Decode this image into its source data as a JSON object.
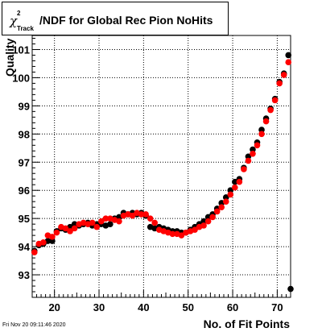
{
  "header": {
    "chi_symbol": "χ",
    "superscript": "2",
    "subscript": "Track",
    "title_rest": "/NDF for Global Rec Pion NoHits"
  },
  "footer": {
    "timestamp": "Fri Nov 20 09:11:46 2020"
  },
  "chart_data": {
    "type": "scatter",
    "title": "χ²_Track/NDF for Global Rec Pion NoHits",
    "xlabel": "No. of Fit Points",
    "ylabel": "Quality",
    "xlim": [
      15,
      73
    ],
    "ylim": [
      92.2,
      101.5
    ],
    "xticks": [
      20,
      30,
      40,
      50,
      60,
      70
    ],
    "yticks": [
      93,
      94,
      95,
      96,
      97,
      98,
      99,
      100,
      101
    ],
    "grid": true,
    "colors": {
      "black_series": "#000000",
      "red_series": "#ff0000"
    },
    "series": [
      {
        "color": "#000000",
        "points": [
          [
            15.5,
            93.85
          ],
          [
            16.5,
            94.05
          ],
          [
            17.5,
            94.1
          ],
          [
            18.5,
            94.2
          ],
          [
            19.5,
            94.2
          ],
          [
            20.5,
            94.55
          ],
          [
            21.5,
            94.65
          ],
          [
            22.5,
            94.6
          ],
          [
            23.5,
            94.7
          ],
          [
            24.5,
            94.8
          ],
          [
            25.5,
            94.75
          ],
          [
            26.5,
            94.8
          ],
          [
            27.5,
            94.85
          ],
          [
            28.5,
            94.75
          ],
          [
            29.5,
            94.8
          ],
          [
            30.5,
            94.8
          ],
          [
            31.5,
            94.75
          ],
          [
            32.5,
            94.8
          ],
          [
            33.5,
            95.0
          ],
          [
            34.5,
            95.05
          ],
          [
            35.5,
            95.2
          ],
          [
            36.5,
            95.15
          ],
          [
            37.5,
            95.2
          ],
          [
            38.5,
            95.15
          ],
          [
            39.5,
            95.2
          ],
          [
            40.5,
            95.1
          ],
          [
            41.5,
            94.7
          ],
          [
            42.5,
            94.65
          ],
          [
            43.5,
            94.7
          ],
          [
            44.5,
            94.65
          ],
          [
            45.5,
            94.6
          ],
          [
            46.5,
            94.55
          ],
          [
            47.5,
            94.55
          ],
          [
            48.5,
            94.5
          ],
          [
            49.5,
            94.5
          ],
          [
            50.5,
            94.6
          ],
          [
            51.5,
            94.7
          ],
          [
            52.5,
            94.8
          ],
          [
            53.5,
            94.9
          ],
          [
            54.5,
            95.05
          ],
          [
            55.5,
            95.15
          ],
          [
            56.5,
            95.35
          ],
          [
            57.5,
            95.55
          ],
          [
            58.5,
            95.75
          ],
          [
            59.5,
            96.0
          ],
          [
            60.5,
            96.3
          ],
          [
            61.5,
            96.4
          ],
          [
            62.5,
            96.8
          ],
          [
            63.5,
            97.2
          ],
          [
            64.5,
            97.45
          ],
          [
            65.5,
            97.7
          ],
          [
            66.5,
            98.15
          ],
          [
            67.5,
            98.55
          ],
          [
            68.5,
            98.9
          ],
          [
            69.5,
            99.25
          ],
          [
            70.5,
            99.85
          ],
          [
            71.5,
            100.15
          ],
          [
            72.5,
            100.8
          ],
          [
            73.0,
            92.5
          ]
        ]
      },
      {
        "color": "#ff0000",
        "points": [
          [
            15.5,
            93.8
          ],
          [
            16.5,
            94.1
          ],
          [
            17.5,
            94.15
          ],
          [
            18.5,
            94.4
          ],
          [
            19.5,
            94.35
          ],
          [
            20.5,
            94.5
          ],
          [
            21.5,
            94.7
          ],
          [
            22.5,
            94.65
          ],
          [
            23.5,
            94.55
          ],
          [
            24.5,
            94.65
          ],
          [
            25.5,
            94.8
          ],
          [
            26.5,
            94.85
          ],
          [
            27.5,
            94.8
          ],
          [
            28.5,
            94.85
          ],
          [
            29.5,
            94.7
          ],
          [
            30.5,
            94.9
          ],
          [
            31.5,
            95.0
          ],
          [
            32.5,
            95.0
          ],
          [
            33.5,
            94.95
          ],
          [
            34.5,
            94.9
          ],
          [
            35.5,
            95.1
          ],
          [
            36.5,
            95.15
          ],
          [
            37.5,
            95.1
          ],
          [
            38.5,
            95.2
          ],
          [
            39.5,
            95.15
          ],
          [
            40.5,
            95.15
          ],
          [
            41.5,
            95.0
          ],
          [
            42.5,
            94.85
          ],
          [
            43.5,
            94.6
          ],
          [
            44.5,
            94.55
          ],
          [
            45.5,
            94.5
          ],
          [
            46.5,
            94.45
          ],
          [
            47.5,
            94.45
          ],
          [
            48.5,
            94.4
          ],
          [
            49.5,
            94.5
          ],
          [
            50.5,
            94.55
          ],
          [
            51.5,
            94.6
          ],
          [
            52.5,
            94.7
          ],
          [
            53.5,
            94.75
          ],
          [
            54.5,
            94.9
          ],
          [
            55.5,
            95.05
          ],
          [
            56.5,
            95.25
          ],
          [
            57.5,
            95.4
          ],
          [
            58.5,
            95.6
          ],
          [
            59.5,
            95.85
          ],
          [
            60.5,
            96.1
          ],
          [
            61.5,
            96.3
          ],
          [
            62.5,
            96.75
          ],
          [
            63.5,
            97.05
          ],
          [
            64.5,
            97.3
          ],
          [
            65.5,
            97.6
          ],
          [
            66.5,
            98.0
          ],
          [
            67.5,
            98.45
          ],
          [
            68.5,
            98.85
          ],
          [
            69.5,
            99.2
          ],
          [
            70.5,
            99.8
          ],
          [
            71.5,
            100.1
          ],
          [
            72.5,
            100.55
          ]
        ]
      }
    ]
  }
}
